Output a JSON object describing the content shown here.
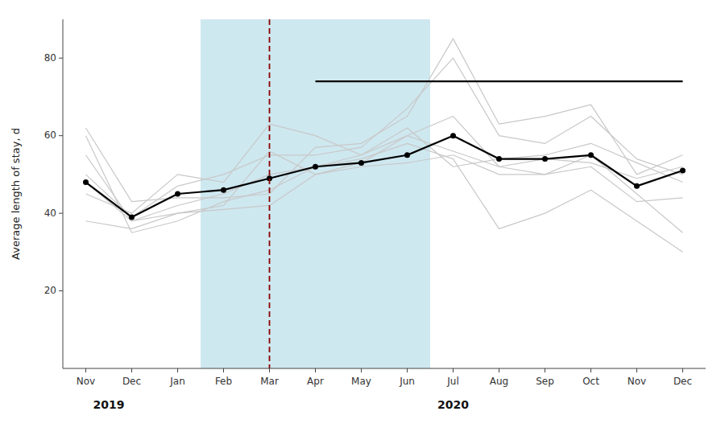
{
  "chart_data": {
    "type": "line",
    "y_label": "Average length of stay, d",
    "categories": [
      "Nov",
      "Dec",
      "Jan",
      "Feb",
      "Mar",
      "Apr",
      "May",
      "Jun",
      "Jul",
      "Aug",
      "Sep",
      "Oct",
      "Nov",
      "Dec"
    ],
    "series": [
      {
        "color": "#c8c8c8",
        "values": [
          62,
          43,
          44,
          44,
          45,
          57,
          58,
          65,
          85,
          63,
          65,
          68,
          50,
          55
        ]
      },
      {
        "color": "#c8c8c8",
        "values": [
          48,
          38,
          40,
          41,
          42,
          50,
          52,
          53,
          55,
          50,
          50,
          52,
          43,
          44
        ]
      },
      {
        "color": "#c8c8c8",
        "values": [
          60,
          35,
          38,
          43,
          46,
          52,
          55,
          60,
          65,
          52,
          54,
          53,
          49,
          52
        ]
      },
      {
        "color": "#c8c8c8",
        "values": [
          50,
          39,
          47,
          50,
          55,
          55,
          57,
          67,
          80,
          60,
          58,
          65,
          54,
          50
        ]
      },
      {
        "color": "#c8c8c8",
        "values": [
          38,
          36,
          40,
          42,
          56,
          50,
          53,
          60,
          56,
          52,
          50,
          55,
          45,
          35
        ]
      },
      {
        "color": "#c8c8c8",
        "values": [
          45,
          40,
          50,
          48,
          63,
          60,
          55,
          62,
          52,
          54,
          55,
          58,
          53,
          48
        ]
      },
      {
        "color": "#c8c8c8",
        "values": [
          55,
          38,
          42,
          45,
          50,
          52,
          54,
          58,
          54,
          36,
          40,
          46,
          38,
          30
        ]
      },
      {
        "color": "#000000",
        "values": [
          null,
          null,
          null,
          null,
          null,
          74,
          74,
          74,
          74,
          74,
          74,
          74,
          74,
          74
        ]
      },
      {
        "color": "#000000",
        "marker": "circle",
        "values": [
          48,
          39,
          45,
          46,
          49,
          52,
          53,
          55,
          60,
          54,
          54,
          55,
          47,
          51
        ]
      }
    ],
    "annotations": [
      {
        "type": "band",
        "x": [
          2.5,
          7.5
        ],
        "color": "#add8e6"
      },
      {
        "type": "vline",
        "x": 4,
        "color": "#8b0000",
        "line_style": "dashed"
      },
      {
        "type": "text",
        "text": "2019",
        "x": 0.5
      },
      {
        "type": "text",
        "text": "2020",
        "x": 8.0
      }
    ],
    "ylim": [
      0,
      90
    ],
    "yticks": [
      20,
      40,
      60,
      80
    ],
    "grid": false
  }
}
